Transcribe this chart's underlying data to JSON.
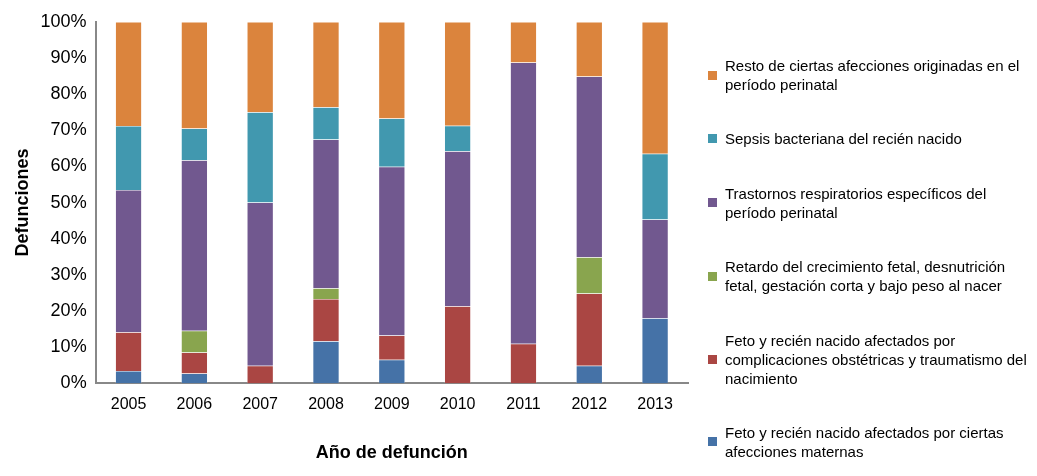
{
  "chart_data": {
    "type": "bar",
    "stacked": true,
    "xlabel": "Año de defunción",
    "ylabel": "Defunciones",
    "categories": [
      "2005",
      "2006",
      "2007",
      "2008",
      "2009",
      "2010",
      "2011",
      "2012",
      "2013"
    ],
    "ylim": [
      0,
      100
    ],
    "yticks": [
      {
        "value": 0,
        "label": "0%"
      },
      {
        "value": 10,
        "label": "10%"
      },
      {
        "value": 20,
        "label": "20%"
      },
      {
        "value": 30,
        "label": "30%"
      },
      {
        "value": 40,
        "label": "40%"
      },
      {
        "value": 50,
        "label": "50%"
      },
      {
        "value": 60,
        "label": "60%"
      },
      {
        "value": 70,
        "label": "70%"
      },
      {
        "value": 80,
        "label": "80%"
      },
      {
        "value": 90,
        "label": "90%"
      },
      {
        "value": 100,
        "label": "100%"
      }
    ],
    "grid": false,
    "legend": "right",
    "series": [
      {
        "name": "Feto y recién nacido afectados por ciertas afecciones maternas",
        "color": "#4572a7",
        "values": [
          3.4,
          2.7,
          0,
          11.6,
          6.5,
          0,
          0,
          4.8,
          18.0
        ]
      },
      {
        "name": "Feto y recién nacido afectados por complicaciones obstétricas y traumatismo del nacimiento",
        "color": "#aa4643",
        "values": [
          10.7,
          5.8,
          4.8,
          11.7,
          6.7,
          21.3,
          10.9,
          20.0,
          0
        ]
      },
      {
        "name": "Retardo del crecimiento fetal, desnutrición fetal, gestación corta y bajo peso al nacer",
        "color": "#89a54e",
        "values": [
          0,
          6.0,
          0,
          3.0,
          0,
          0,
          0,
          10.1,
          0
        ]
      },
      {
        "name": "Trastornos respiratorios específicos del período perinatal",
        "color": "#71588f",
        "values": [
          39.4,
          47.2,
          45.2,
          41.2,
          46.7,
          42.9,
          77.9,
          50.0,
          27.3
        ]
      },
      {
        "name": "Sepsis bacteriana del recién nacido",
        "color": "#4198af",
        "values": [
          17.7,
          8.8,
          25.0,
          8.9,
          13.4,
          7.1,
          0,
          0,
          18.2
        ]
      },
      {
        "name": "Resto de ciertas afecciones originadas en el período perinatal",
        "color": "#db843d",
        "values": [
          28.8,
          29.5,
          25.0,
          23.6,
          26.7,
          28.7,
          11.2,
          15.1,
          36.5
        ]
      }
    ]
  }
}
